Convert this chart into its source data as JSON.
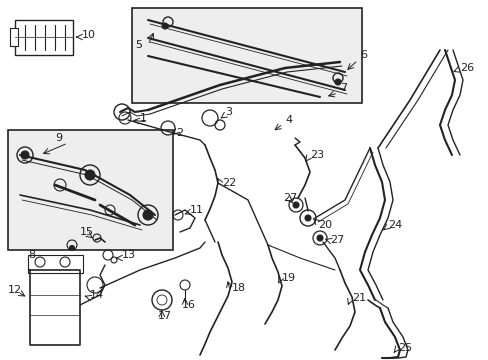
{
  "background_color": "#ffffff",
  "line_color": "#222222",
  "box_fill": "#eeeeee",
  "figsize": [
    4.89,
    3.6
  ],
  "dpi": 100,
  "xlim": [
    0,
    489
  ],
  "ylim": [
    0,
    360
  ]
}
